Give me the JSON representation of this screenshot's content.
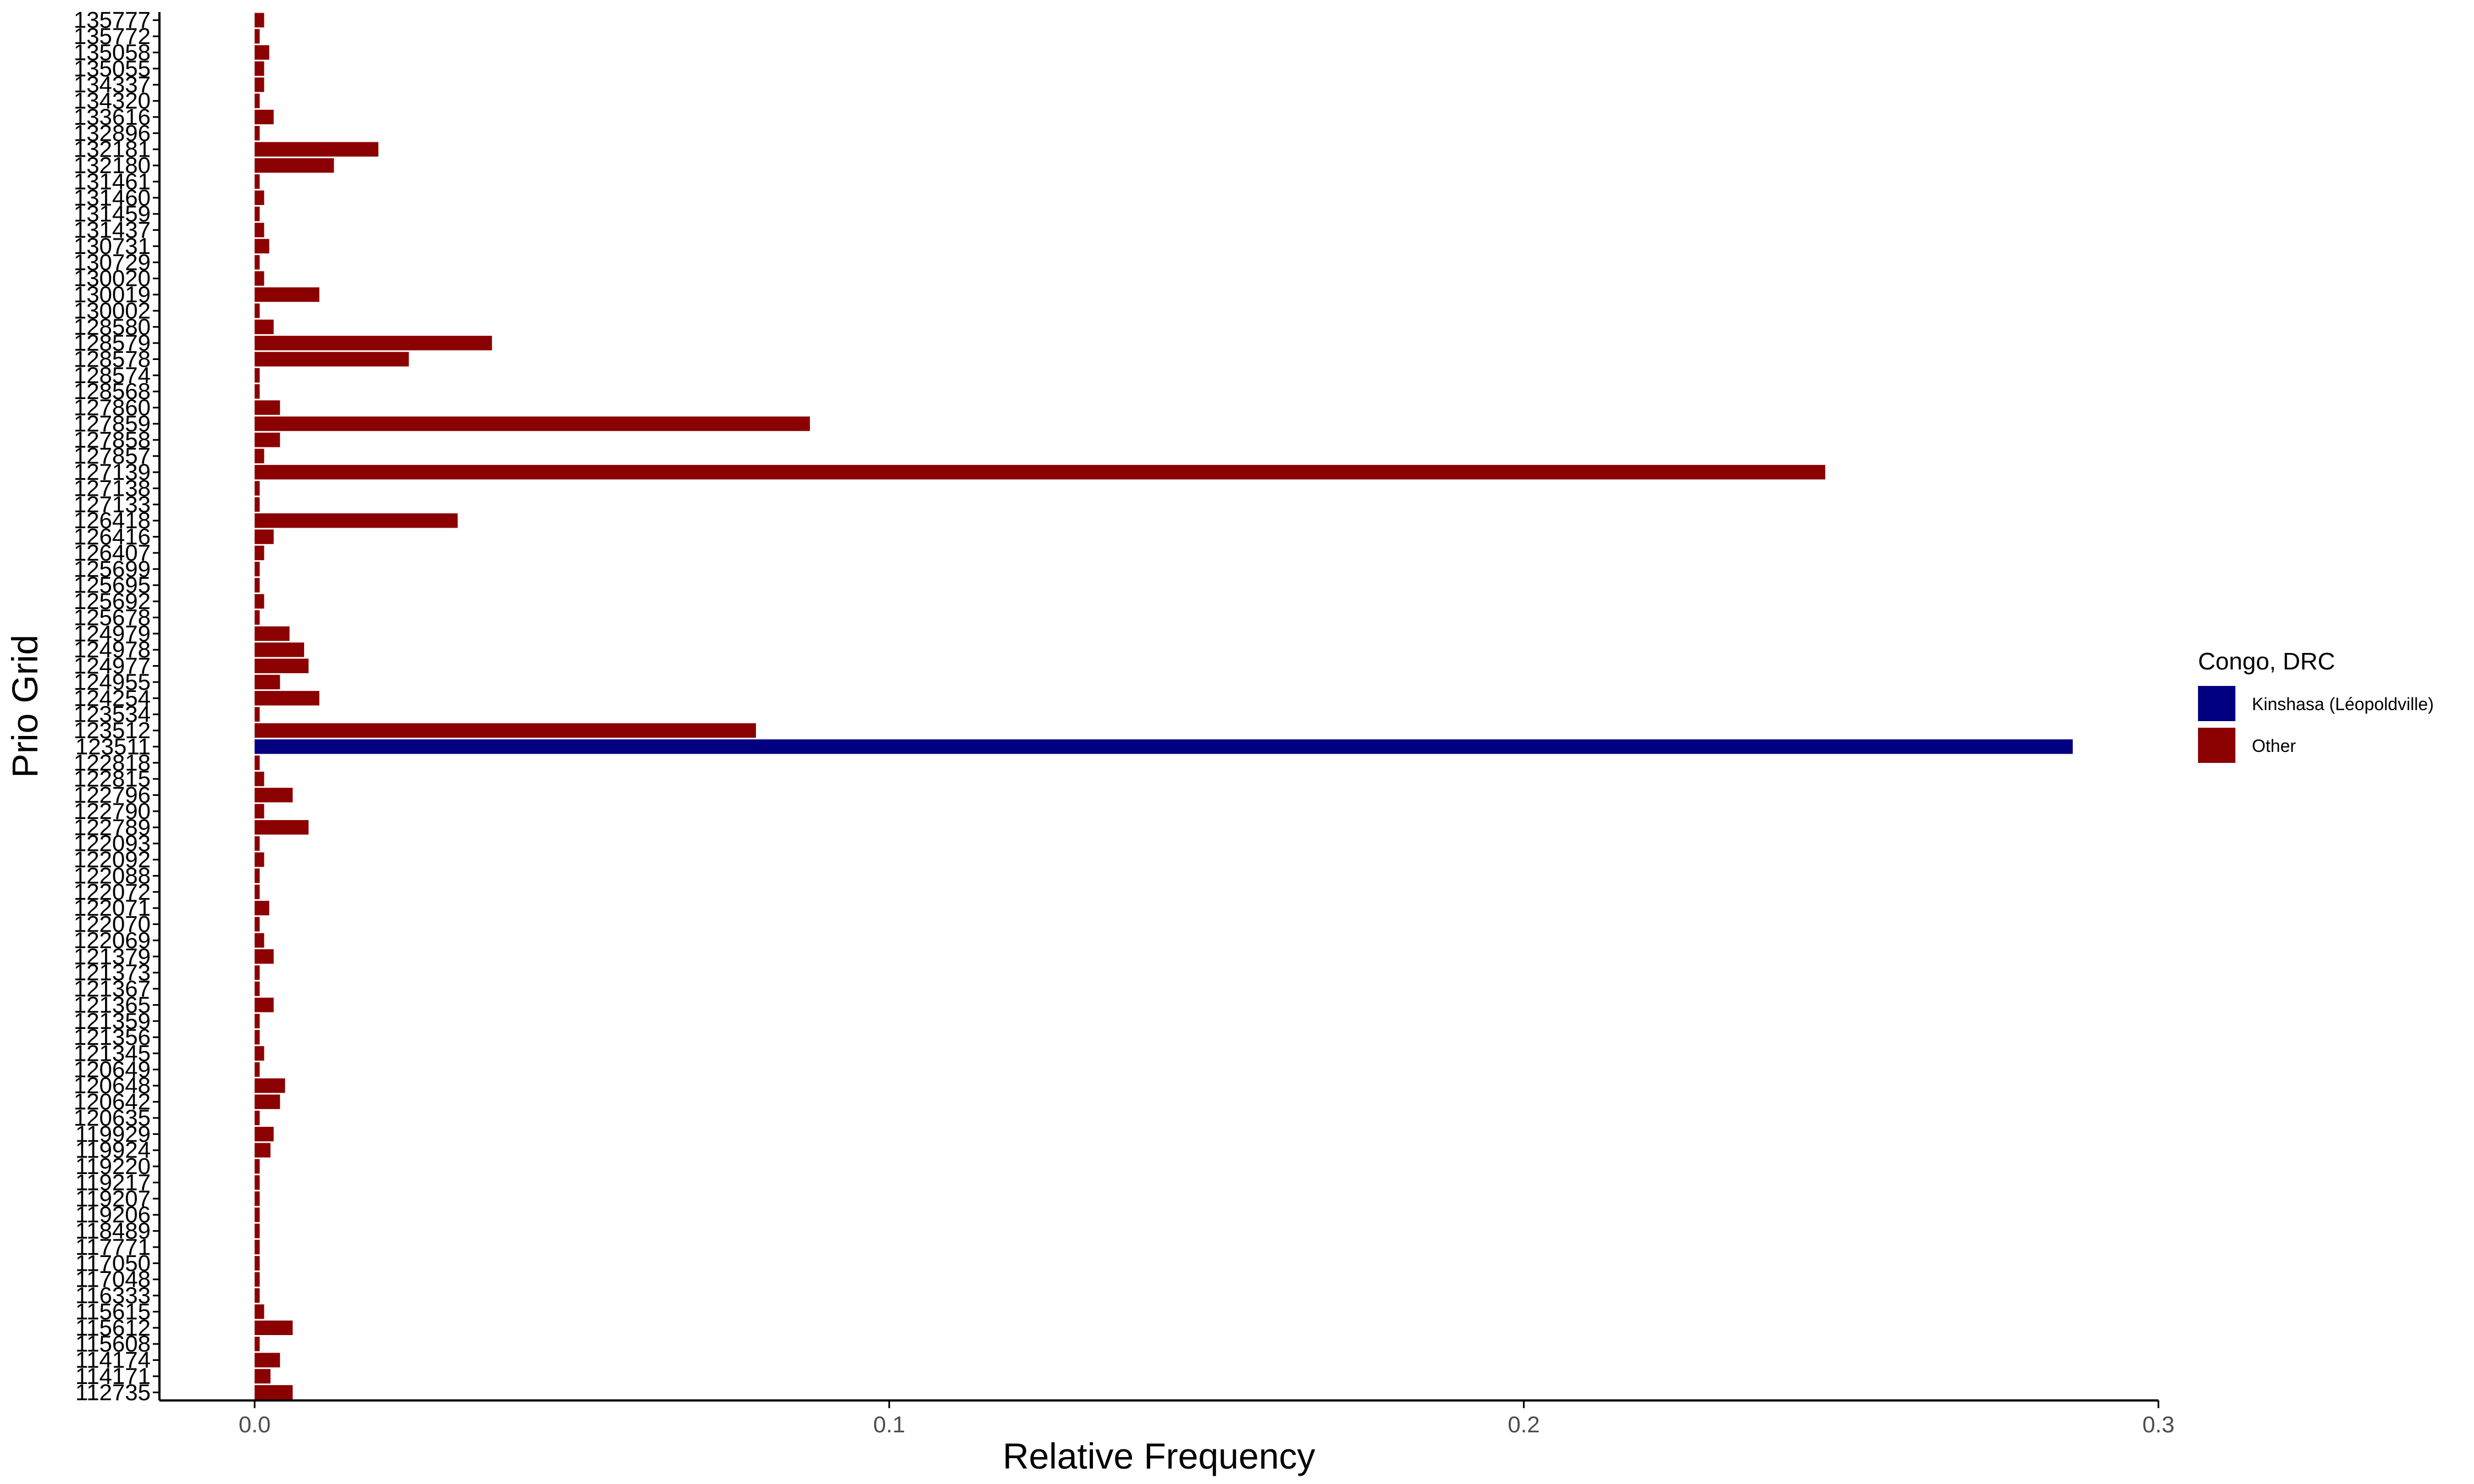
{
  "chart_data": {
    "type": "bar",
    "orientation": "horizontal",
    "xlabel": "Relative Frequency",
    "ylabel": "Prio Grid",
    "xlim": [
      -0.015,
      0.3
    ],
    "xticks": [
      {
        "value": 0,
        "label": "0.0"
      },
      {
        "value": 0.1,
        "label": "0.1"
      },
      {
        "value": 0.2,
        "label": "0.2"
      },
      {
        "value": 0.3,
        "label": "0.3"
      }
    ],
    "grid": false,
    "legend": {
      "title": "Congo, DRC",
      "position": "right",
      "entries": [
        {
          "label": "Kinshasa (Léopoldville)",
          "color": "#000080"
        },
        {
          "label": "Other",
          "color": "#8B0000"
        }
      ]
    },
    "categories": [
      "112735",
      "114171",
      "114174",
      "115608",
      "115612",
      "115615",
      "116333",
      "117048",
      "117050",
      "117771",
      "118489",
      "119206",
      "119207",
      "119217",
      "119220",
      "119924",
      "119929",
      "120635",
      "120642",
      "120648",
      "120649",
      "121345",
      "121356",
      "121359",
      "121365",
      "121367",
      "121373",
      "121379",
      "122069",
      "122070",
      "122071",
      "122072",
      "122088",
      "122092",
      "122093",
      "122789",
      "122790",
      "122796",
      "122815",
      "122818",
      "123511",
      "123512",
      "123534",
      "124254",
      "124955",
      "124977",
      "124978",
      "124979",
      "125678",
      "125692",
      "125695",
      "125699",
      "126407",
      "126416",
      "126418",
      "127133",
      "127138",
      "127139",
      "127857",
      "127858",
      "127859",
      "127860",
      "128568",
      "128574",
      "128578",
      "128579",
      "128580",
      "130002",
      "130019",
      "130020",
      "130729",
      "130731",
      "131437",
      "131459",
      "131460",
      "131461",
      "132180",
      "132181",
      "132896",
      "133616",
      "134320",
      "134337",
      "135055",
      "135058",
      "135772",
      "135777"
    ],
    "series": [
      {
        "name": "Other",
        "color": "#8B0000",
        "values": [
          0.006,
          0.0025,
          0.004,
          0.0008,
          0.006,
          0.0015,
          0.0008,
          0.0008,
          0.0008,
          0.0008,
          0.0008,
          0.0008,
          0.0008,
          0.0008,
          0.0008,
          0.0025,
          0.003,
          0.0008,
          0.004,
          0.0048,
          0.0008,
          0.0015,
          0.0008,
          0.0008,
          0.003,
          0.0008,
          0.0008,
          0.003,
          0.0015,
          0.0008,
          0.0023,
          0.0008,
          0.0008,
          0.0015,
          0.0008,
          0.0085,
          0.0015,
          0.006,
          0.0015,
          0.0008,
          0,
          0.079,
          0.0008,
          0.0102,
          0.004,
          0.0085,
          0.0078,
          0.0055,
          0.0008,
          0.0015,
          0.0008,
          0.0008,
          0.0015,
          0.003,
          0.032,
          0.0008,
          0.0008,
          0.2475,
          0.0015,
          0.004,
          0.0875,
          0.004,
          0.0008,
          0.0008,
          0.0243,
          0.0374,
          0.003,
          0.0008,
          0.0102,
          0.0015,
          0.0008,
          0.0023,
          0.0015,
          0.0008,
          0.0015,
          0.0008,
          0.0125,
          0.0195,
          0.0008,
          0.003,
          0.0008,
          0.0015,
          0.0015,
          0.0023,
          0.0008,
          0.0015
        ]
      },
      {
        "name": "Kinshasa (Léopoldville)",
        "color": "#000080",
        "values": [
          0,
          0,
          0,
          0,
          0,
          0,
          0,
          0,
          0,
          0,
          0,
          0,
          0,
          0,
          0,
          0,
          0,
          0,
          0,
          0,
          0,
          0,
          0,
          0,
          0,
          0,
          0,
          0,
          0,
          0,
          0,
          0,
          0,
          0,
          0,
          0,
          0,
          0,
          0,
          0,
          0.2865,
          0,
          0,
          0,
          0,
          0,
          0,
          0,
          0,
          0,
          0,
          0,
          0,
          0,
          0,
          0,
          0,
          0,
          0,
          0,
          0,
          0,
          0,
          0,
          0,
          0,
          0,
          0,
          0,
          0,
          0,
          0,
          0,
          0,
          0,
          0,
          0,
          0,
          0,
          0,
          0,
          0,
          0,
          0,
          0,
          0
        ]
      }
    ]
  }
}
